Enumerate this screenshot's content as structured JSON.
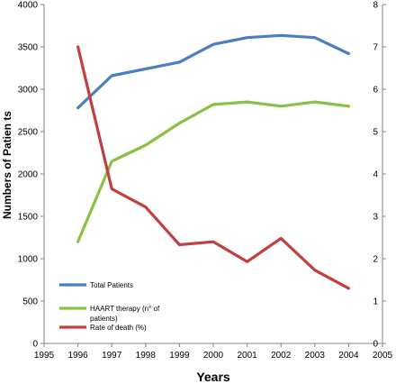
{
  "chart_data": {
    "type": "line",
    "title": "",
    "xlabel": "Years",
    "ylabel": "Numbers  of  Patien ts",
    "y2label": "",
    "xlim": [
      1995,
      2005
    ],
    "ylim": [
      0,
      4000
    ],
    "y2lim": [
      0,
      8
    ],
    "x_ticks": [
      "1995",
      "1996",
      "1997",
      "1998",
      "1999",
      "2000",
      "2001",
      "2002",
      "2003",
      "2004",
      "2005"
    ],
    "y_ticks": [
      "0",
      "500",
      "1000",
      "1500",
      "2000",
      "2500",
      "3000",
      "3500",
      "4000"
    ],
    "y2_ticks": [
      "0",
      "1",
      "2",
      "3",
      "4",
      "5",
      "6",
      "7",
      "8"
    ],
    "grid": false,
    "legend_position": "bottom-left",
    "x": [
      1996,
      1997,
      1998,
      1999,
      2000,
      2001,
      2002,
      2003,
      2004
    ],
    "series": [
      {
        "name": "Total Patients",
        "axis": "left",
        "color": "#4a7fc1",
        "values": [
          2780,
          3160,
          3240,
          3320,
          3530,
          3610,
          3635,
          3610,
          3420
        ]
      },
      {
        "name": "HAART therapy (n° of patients)",
        "axis": "left",
        "color": "#8cbf45",
        "values": [
          1200,
          2150,
          2340,
          2600,
          2820,
          2850,
          2800,
          2850,
          2800
        ]
      },
      {
        "name": "Rate of death (%)",
        "axis": "right",
        "color": "#c0403f",
        "values": [
          7.0,
          3.65,
          3.22,
          2.33,
          2.4,
          1.93,
          2.48,
          1.73,
          1.3
        ]
      }
    ],
    "legend_lines": [
      [
        "Total Patients"
      ],
      [
        "HAART therapy (n° of",
        "patients)"
      ],
      [
        "Rate of death (%)"
      ]
    ]
  }
}
